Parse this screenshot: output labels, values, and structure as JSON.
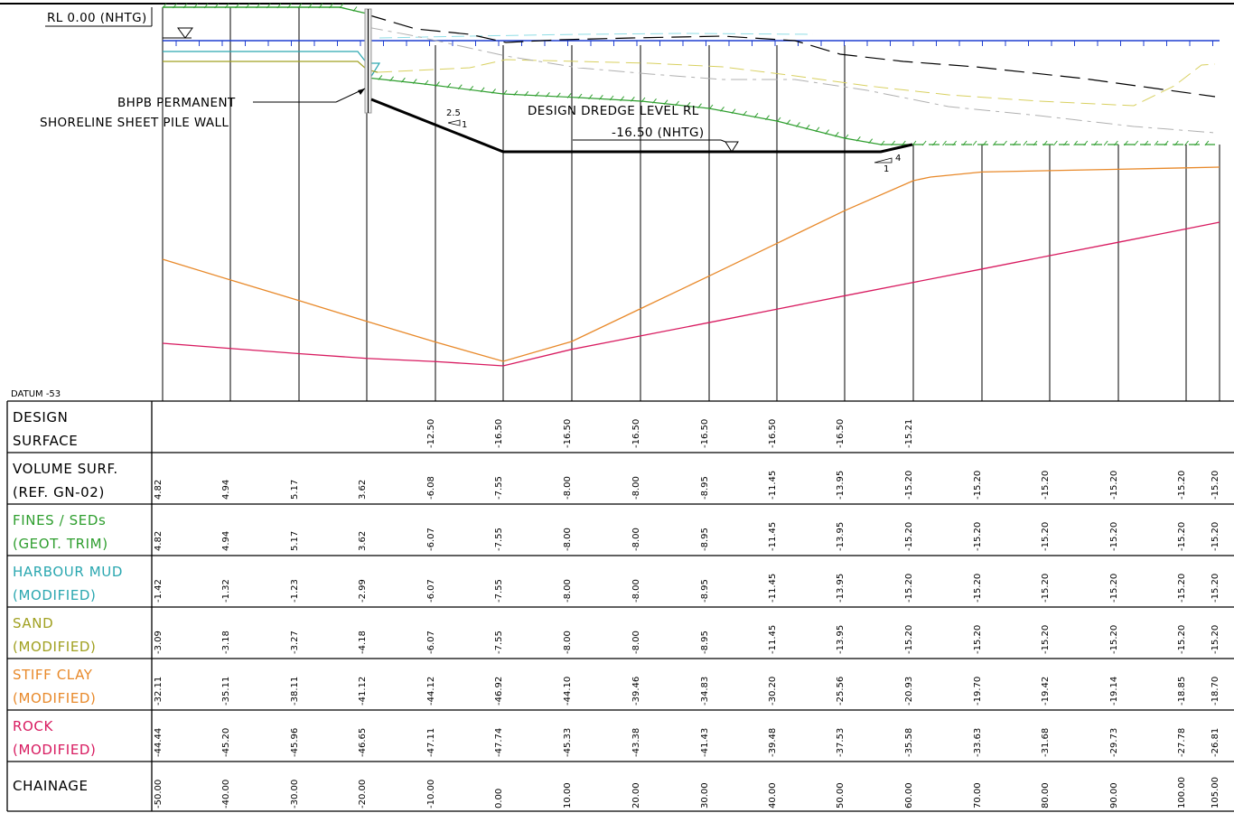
{
  "annotations": {
    "rl_label": "RL 0.00 (NHTG)",
    "wall_label_1": "BHPB PERMANENT",
    "wall_label_2": "SHORELINE SHEET PILE WALL",
    "dredge_label_1": "DESIGN DREDGE LEVEL RL",
    "dredge_label_2": "-16.50 (NHTG)",
    "slope_left_rise": "2.5",
    "slope_left_run": "1",
    "slope_right_run": "4",
    "slope_right_rise": "1",
    "datum": "DATUM -53"
  },
  "colors": {
    "design": "#000000",
    "volume": "#000000",
    "fines": "#2e9e2e",
    "mud": "#2aa7b0",
    "sand": "#a0a020",
    "clay": "#e8892a",
    "rock": "#d81b60",
    "water": "#1f3fd0"
  },
  "table": {
    "chainages": [
      "-50.00",
      "-40.00",
      "-30.00",
      "-20.00",
      "-10.00",
      "0.00",
      "10.00",
      "20.00",
      "30.00",
      "40.00",
      "50.00",
      "60.00",
      "70.00",
      "80.00",
      "90.00",
      "100.00",
      "105.00"
    ],
    "rows": [
      {
        "key": "design",
        "line1": "DESIGN",
        "line2": "SURFACE",
        "color": "#000000",
        "values": [
          "",
          "",
          "",
          "",
          "-12.50",
          "-16.50",
          "-16.50",
          "-16.50",
          "-16.50",
          "-16.50",
          "-16.50",
          "-15.21",
          "",
          "",
          "",
          "",
          ""
        ]
      },
      {
        "key": "volume",
        "line1": "VOLUME SURF.",
        "line2": "(REF. GN-02)",
        "color": "#000000",
        "values": [
          "4.82",
          "4.94",
          "5.17",
          "3.62",
          "-6.08",
          "-7.55",
          "-8.00",
          "-8.00",
          "-8.95",
          "-11.45",
          "-13.95",
          "-15.20",
          "-15.20",
          "-15.20",
          "-15.20",
          "-15.20",
          "-15.20"
        ]
      },
      {
        "key": "fines",
        "line1": "FINES / SEDs",
        "line2": "(GEOT. TRIM)",
        "color": "#2e9e2e",
        "values": [
          "4.82",
          "4.94",
          "5.17",
          "3.62",
          "-6.07",
          "-7.55",
          "-8.00",
          "-8.00",
          "-8.95",
          "-11.45",
          "-13.95",
          "-15.20",
          "-15.20",
          "-15.20",
          "-15.20",
          "-15.20",
          "-15.20"
        ]
      },
      {
        "key": "mud",
        "line1": "HARBOUR MUD",
        "line2": "(MODIFIED)",
        "color": "#2aa7b0",
        "values": [
          "-1.42",
          "-1.32",
          "-1.23",
          "-2.99",
          "-6.07",
          "-7.55",
          "-8.00",
          "-8.00",
          "-8.95",
          "-11.45",
          "-13.95",
          "-15.20",
          "-15.20",
          "-15.20",
          "-15.20",
          "-15.20",
          "-15.20"
        ]
      },
      {
        "key": "sand",
        "line1": "SAND",
        "line2": "(MODIFIED)",
        "color": "#a0a020",
        "values": [
          "-3.09",
          "-3.18",
          "-3.27",
          "-4.18",
          "-6.07",
          "-7.55",
          "-8.00",
          "-8.00",
          "-8.95",
          "-11.45",
          "-13.95",
          "-15.20",
          "-15.20",
          "-15.20",
          "-15.20",
          "-15.20",
          "-15.20"
        ]
      },
      {
        "key": "clay",
        "line1": "STIFF CLAY",
        "line2": "(MODIFIED)",
        "color": "#e8892a",
        "values": [
          "-32.11",
          "-35.11",
          "-38.11",
          "-41.12",
          "-44.12",
          "-46.92",
          "-44.10",
          "-39.46",
          "-34.83",
          "-30.20",
          "-25.56",
          "-20.93",
          "-19.70",
          "-19.42",
          "-19.14",
          "-18.85",
          "-18.70"
        ]
      },
      {
        "key": "rock",
        "line1": "ROCK",
        "line2": "(MODIFIED)",
        "color": "#d81b60",
        "values": [
          "-44.44",
          "-45.20",
          "-45.96",
          "-46.65",
          "-47.11",
          "-47.74",
          "-45.33",
          "-43.38",
          "-41.43",
          "-39.48",
          "-37.53",
          "-35.58",
          "-33.63",
          "-31.68",
          "-29.73",
          "-27.78",
          "-26.81"
        ]
      },
      {
        "key": "chainage",
        "line1": "CHAINAGE",
        "line2": "",
        "color": "#000000",
        "values": [
          "-50.00",
          "-40.00",
          "-30.00",
          "-20.00",
          "-10.00",
          "0.00",
          "10.00",
          "20.00",
          "30.00",
          "40.00",
          "50.00",
          "60.00",
          "70.00",
          "80.00",
          "90.00",
          "100.00",
          "105.00"
        ]
      }
    ]
  }
}
